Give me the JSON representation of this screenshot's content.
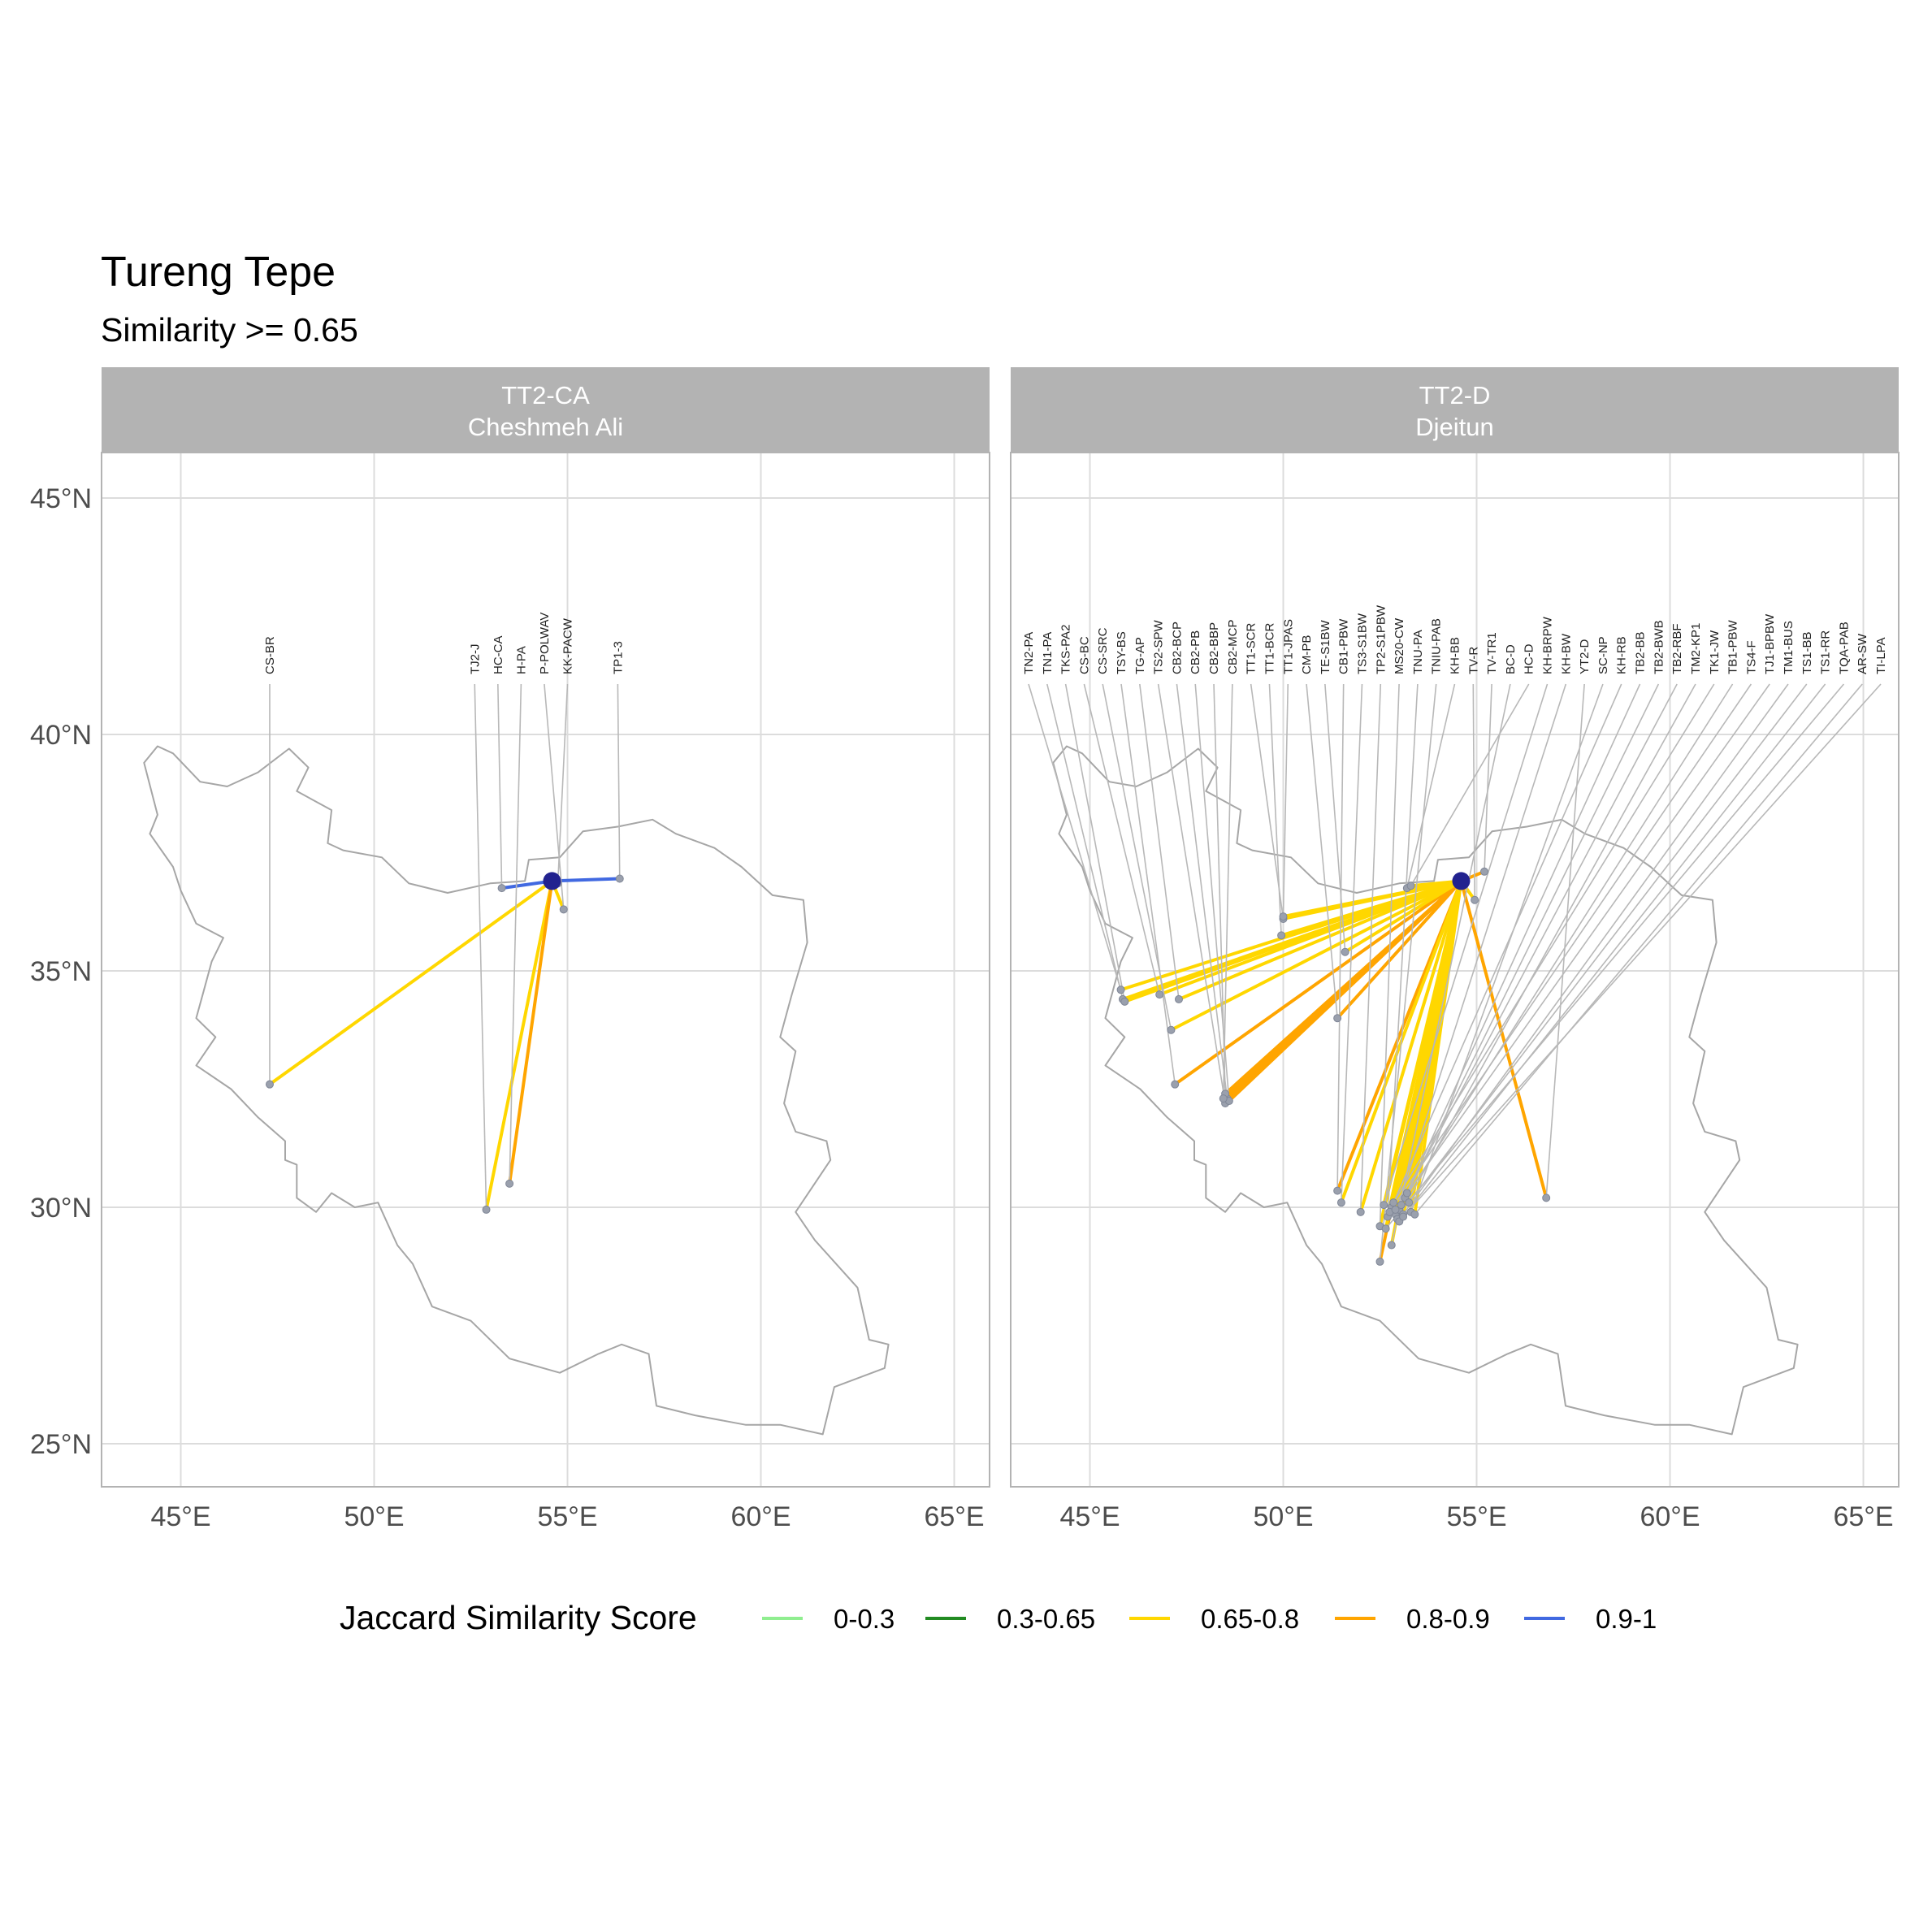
{
  "title": "Tureng Tepe",
  "subtitle": "Similarity >= 0.65",
  "x_ticks": [
    "45°E",
    "50°E",
    "55°E",
    "60°E",
    "65°E"
  ],
  "y_ticks": [
    "25°N",
    "30°N",
    "35°N",
    "40°N",
    "45°N"
  ],
  "legend": {
    "title": "Jaccard Similarity Score",
    "items": [
      {
        "label": "0-0.3",
        "color": "#90ee90"
      },
      {
        "label": "0.3-0.65",
        "color": "#228b22"
      },
      {
        "label": "0.65-0.8",
        "color": "#ffd700"
      },
      {
        "label": "0.8-0.9",
        "color": "#ffa500"
      },
      {
        "label": "0.9-1",
        "color": "#4169e1"
      }
    ]
  },
  "colors": {
    "hub": "#22228f",
    "site": "#9aa0ad",
    "leader": "#b8b8b8",
    "border": "#a6a6a6"
  },
  "chart_data": {
    "type": "map",
    "hub": {
      "name": "Tureng Tepe",
      "lon": 54.6,
      "lat": 36.9
    },
    "xlim": [
      43,
      66
    ],
    "ylim": [
      24.4,
      46
    ],
    "score_colors": {
      "0.65-0.8": "#ffd700",
      "0.8-0.9": "#ffa500",
      "0.9-1": "#4169e1"
    },
    "panels": [
      {
        "strip_line1": "TT2-CA",
        "strip_line2": "Cheshmeh Ali",
        "sites": [
          {
            "name": "CS-BR",
            "lon": 47.3,
            "lat": 32.6,
            "score": "0.65-0.8"
          },
          {
            "name": "TJ2-J",
            "lon": 52.9,
            "lat": 29.95,
            "score": "0.65-0.8"
          },
          {
            "name": "HC-CA",
            "lon": 53.3,
            "lat": 36.75,
            "score": "0.9-1"
          },
          {
            "name": "H-PA",
            "lon": 53.5,
            "lat": 30.5,
            "score": "0.8-0.9"
          },
          {
            "name": "P-POLWAV",
            "lon": 54.9,
            "lat": 36.3,
            "score": "0.65-0.8"
          },
          {
            "name": "KK-PACW",
            "lon": 54.75,
            "lat": 36.85,
            "score": "0.65-0.8"
          },
          {
            "name": "TP1-3",
            "lon": 56.35,
            "lat": 36.95,
            "score": "0.9-1"
          }
        ]
      },
      {
        "strip_line1": "TT2-D",
        "strip_line2": "Djeitun",
        "sites": [
          {
            "name": "TN2-PA",
            "lon": 45.8,
            "lat": 34.6,
            "score": "0.65-0.8"
          },
          {
            "name": "TN1-PA",
            "lon": 45.85,
            "lat": 34.4,
            "score": "0.65-0.8"
          },
          {
            "name": "TKS-PA2",
            "lon": 45.9,
            "lat": 34.35,
            "score": "0.65-0.8"
          },
          {
            "name": "CS-BC",
            "lon": 46.8,
            "lat": 34.5,
            "score": "0.65-0.8"
          },
          {
            "name": "CS-SRC",
            "lon": 47.1,
            "lat": 33.75,
            "score": "0.65-0.8"
          },
          {
            "name": "TSY-BS",
            "lon": 47.2,
            "lat": 32.6,
            "score": "0.8-0.9"
          },
          {
            "name": "TG-AP",
            "lon": 47.3,
            "lat": 34.4,
            "score": "0.65-0.8"
          },
          {
            "name": "TS2-SPW",
            "lon": 48.5,
            "lat": 32.2,
            "score": "0.8-0.9"
          },
          {
            "name": "CB2-BCP",
            "lon": 48.55,
            "lat": 32.3,
            "score": "0.8-0.9"
          },
          {
            "name": "CB2-PB",
            "lon": 48.6,
            "lat": 32.25,
            "score": "0.8-0.9"
          },
          {
            "name": "CB2-BBP",
            "lon": 48.5,
            "lat": 32.4,
            "score": "0.8-0.9"
          },
          {
            "name": "CB2-MCP",
            "lon": 48.45,
            "lat": 32.3,
            "score": "0.8-0.9"
          },
          {
            "name": "TT1-SCR",
            "lon": 50.0,
            "lat": 36.1,
            "score": "0.65-0.8"
          },
          {
            "name": "TT1-BCR",
            "lon": 49.95,
            "lat": 35.75,
            "score": "0.65-0.8"
          },
          {
            "name": "TT1-JPAS",
            "lon": 50.0,
            "lat": 36.15,
            "score": "0.65-0.8"
          },
          {
            "name": "CM-PB",
            "lon": 51.4,
            "lat": 34.0,
            "score": "0.8-0.9"
          },
          {
            "name": "TE-S1BW",
            "lon": 51.6,
            "lat": 35.4,
            "score": "0.65-0.8"
          },
          {
            "name": "CB1-PBW",
            "lon": 51.4,
            "lat": 30.35,
            "score": "0.8-0.9"
          },
          {
            "name": "TS3-S1BW",
            "lon": 51.5,
            "lat": 30.1,
            "score": "0.65-0.8"
          },
          {
            "name": "TP2-S1PBW",
            "lon": 52.0,
            "lat": 29.9,
            "score": "0.65-0.8"
          },
          {
            "name": "MS20-CW",
            "lon": 52.5,
            "lat": 29.6,
            "score": "0.65-0.8"
          },
          {
            "name": "TNU-PA",
            "lon": 52.7,
            "lat": 29.8,
            "score": "0.65-0.8"
          },
          {
            "name": "TNIU-PAB",
            "lon": 52.5,
            "lat": 28.85,
            "score": "0.8-0.9"
          },
          {
            "name": "KH-BB",
            "lon": 53.2,
            "lat": 36.75,
            "score": "0.65-0.8"
          },
          {
            "name": "TV-R",
            "lon": 54.95,
            "lat": 36.5,
            "score": "0.65-0.8"
          },
          {
            "name": "TV-TR1",
            "lon": 55.2,
            "lat": 37.1,
            "score": "0.8-0.9"
          },
          {
            "name": "BC-D",
            "lon": 52.8,
            "lat": 29.2,
            "score": "0.65-0.8"
          },
          {
            "name": "HC-D",
            "lon": 53.3,
            "lat": 36.8,
            "score": "0.65-0.8"
          },
          {
            "name": "KH-BRPW",
            "lon": 52.6,
            "lat": 30.05,
            "score": "0.65-0.8"
          },
          {
            "name": "KH-BW",
            "lon": 52.9,
            "lat": 29.85,
            "score": "0.65-0.8"
          },
          {
            "name": "YT2-D",
            "lon": 56.8,
            "lat": 30.2,
            "score": "0.8-0.9"
          },
          {
            "name": "SC-NP",
            "lon": 53.3,
            "lat": 29.9,
            "score": "0.65-0.8"
          },
          {
            "name": "KH-RB",
            "lon": 52.8,
            "lat": 30.0,
            "score": "0.65-0.8"
          },
          {
            "name": "TB2-BB",
            "lon": 53.0,
            "lat": 29.95,
            "score": "0.65-0.8"
          },
          {
            "name": "TB2-BWB",
            "lon": 53.15,
            "lat": 30.2,
            "score": "0.65-0.8"
          },
          {
            "name": "TB2-RBF",
            "lon": 53.2,
            "lat": 30.3,
            "score": "0.65-0.8"
          },
          {
            "name": "TM2-KP1",
            "lon": 52.95,
            "lat": 29.75,
            "score": "0.65-0.8"
          },
          {
            "name": "TK1-JW",
            "lon": 52.85,
            "lat": 30.1,
            "score": "0.65-0.8"
          },
          {
            "name": "TB1-PBW",
            "lon": 53.05,
            "lat": 30.05,
            "score": "0.65-0.8"
          },
          {
            "name": "TS4-F",
            "lon": 52.75,
            "lat": 29.9,
            "score": "0.65-0.8"
          },
          {
            "name": "TJ1-BPBW",
            "lon": 52.9,
            "lat": 29.95,
            "score": "0.65-0.8"
          },
          {
            "name": "TM1-BUS",
            "lon": 53.1,
            "lat": 29.85,
            "score": "0.65-0.8"
          },
          {
            "name": "TS1-BB",
            "lon": 53.25,
            "lat": 30.1,
            "score": "0.65-0.8"
          },
          {
            "name": "TS1-RR",
            "lon": 53.0,
            "lat": 29.7,
            "score": "0.65-0.8"
          },
          {
            "name": "TQA-PAB",
            "lon": 52.65,
            "lat": 29.55,
            "score": "0.65-0.8"
          },
          {
            "name": "AR-SW",
            "lon": 53.4,
            "lat": 29.85,
            "score": "0.65-0.8"
          },
          {
            "name": "TI-LPA",
            "lon": 53.1,
            "lat": 29.8,
            "score": "0.65-0.8"
          }
        ]
      }
    ]
  }
}
